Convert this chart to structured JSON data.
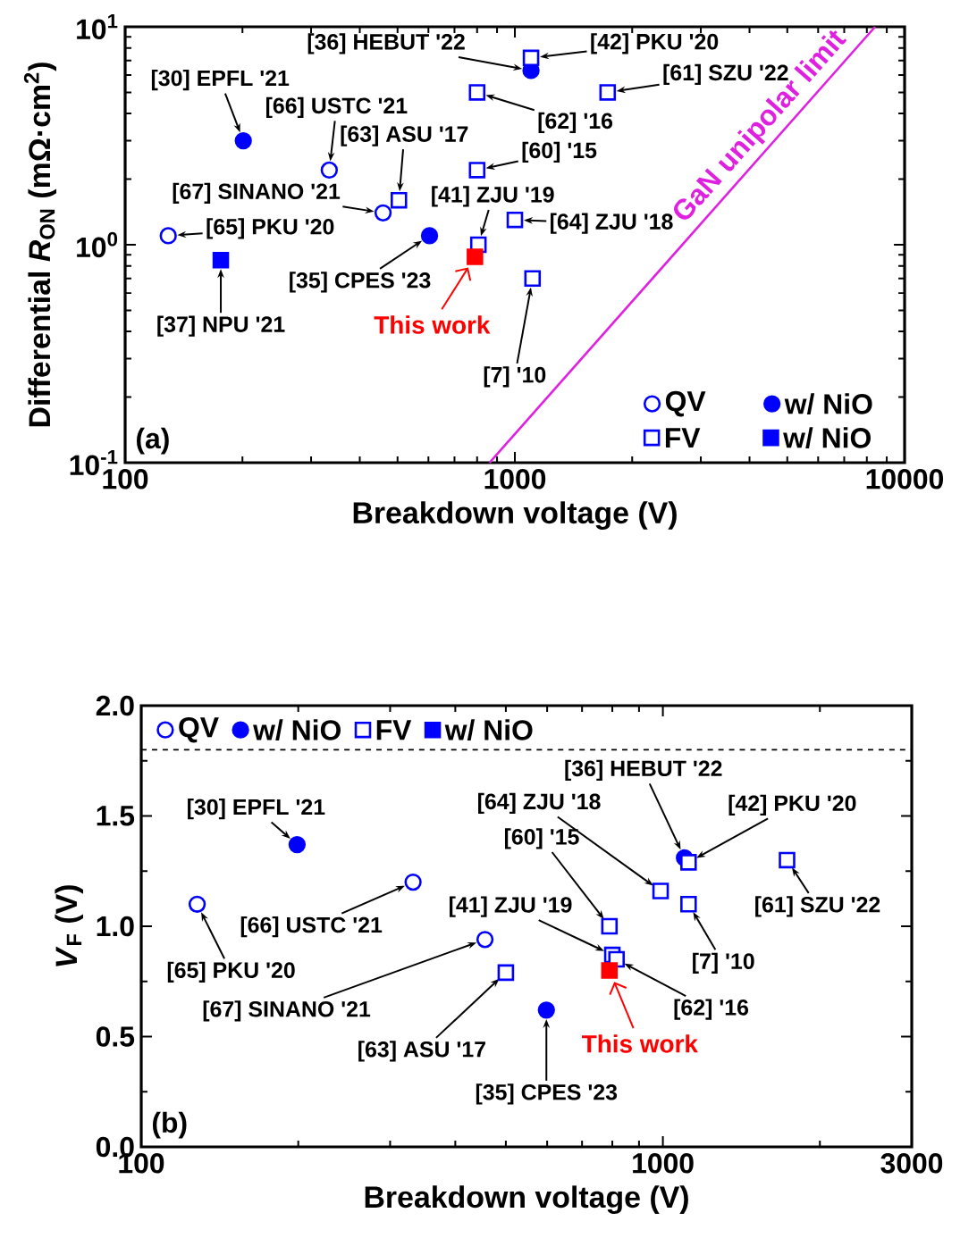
{
  "chart_data": [
    {
      "type": "scatter",
      "xlabel": "Breakdown voltage (V)",
      "ylabel": "Differential *R*$_{ON}$ (mΩ·cm$^{2}$)",
      "log": "xy",
      "xlim": [
        100,
        10000
      ],
      "ylim": [
        0.1,
        10
      ],
      "xticks": [
        100,
        1000,
        10000
      ],
      "yticks": [
        {
          "value": 0.1,
          "label": "10$^{-1}$"
        },
        {
          "value": 1,
          "label": "10$^{0}$"
        },
        {
          "value": 10,
          "label": "10$^{1}$"
        }
      ],
      "legend": "bottom right",
      "series": [
        {
          "name": "QV",
          "color": "#0000ff",
          "marker": "circle",
          "x": [
            334,
            459,
            129
          ],
          "values": [
            2.2,
            1.4,
            1.1
          ]
        },
        {
          "name": "w/ NiO",
          "color": "#0000ff",
          "marker": "circle",
          "x": [
            201,
            604,
            1100
          ],
          "values": [
            3.0,
            1.1,
            6.3
          ]
        },
        {
          "name": "FV",
          "color": "#0000ff",
          "marker": "square",
          "x": [
            504,
            806,
            800,
            800,
            1000,
            1110,
            1100,
            1730
          ],
          "values": [
            1.6,
            1.0,
            5.0,
            2.2,
            1.3,
            0.7,
            7.2,
            5.0
          ]
        },
        {
          "name": "w/ NiO",
          "color": "#0000ff",
          "marker": "square",
          "x": [
            176
          ],
          "values": [
            0.85
          ]
        },
        {
          "name": "This work",
          "color": "#ff0000",
          "marker": "square",
          "x": [
            790
          ],
          "values": [
            0.88
          ]
        },
        {
          "name": "GaN unipolar limit",
          "type": "line",
          "color": "#e020e0",
          "x": [
            861,
            8400
          ],
          "values": [
            0.1,
            10
          ]
        }
      ],
      "annotations": [
        "(a)",
        {
          "text": "[30] EPFL '21",
          "x": 201,
          "y": 3.0
        },
        {
          "text": "[66] USTC '21",
          "x": 334,
          "y": 2.2
        },
        {
          "text": "[63] ASU '17",
          "x": 504,
          "y": 1.6
        },
        {
          "text": "[67] SINANO '21",
          "x": 459,
          "y": 1.4
        },
        {
          "text": "[65] PKU '20",
          "x": 129,
          "y": 1.1
        },
        {
          "text": "[37] NPU '21",
          "x": 176,
          "y": 0.85
        },
        {
          "text": "[35] CPES '23",
          "x": 604,
          "y": 1.1
        },
        {
          "text": "[41] ZJU '19",
          "x": 806,
          "y": 1.0
        },
        {
          "text": "[62] '16",
          "x": 800,
          "y": 5.0
        },
        {
          "text": "[60] '15",
          "x": 800,
          "y": 2.2
        },
        {
          "text": "[64] ZJU '18",
          "x": 1000,
          "y": 1.3
        },
        {
          "text": "[7] '10",
          "x": 1110,
          "y": 0.7
        },
        {
          "text": "[36] HEBUT '22",
          "x": 1100,
          "y": 6.3
        },
        {
          "text": "[42] PKU '20",
          "x": 1100,
          "y": 7.2
        },
        {
          "text": "[61] SZU '22",
          "x": 1730,
          "y": 5.0
        }
      ]
    },
    {
      "type": "scatter",
      "xlabel": "Breakdown voltage (V)",
      "ylabel": "*V*$_{F}$ (V)",
      "log": "x",
      "xlim": [
        100,
        3000
      ],
      "ylim": [
        0,
        2
      ],
      "xticks": [
        100,
        1000,
        3000
      ],
      "yticks": [
        {
          "value": 0,
          "label": "0.0"
        },
        0.5,
        {
          "value": 1,
          "label": "1.0"
        },
        1.5,
        {
          "value": 2,
          "label": "2.0"
        }
      ],
      "legend": "top left",
      "ref_lines": [
        {
          "axis": "y",
          "value": 1.8,
          "color": "#000000",
          "line_style": "dashed"
        }
      ],
      "series": [
        {
          "name": "QV",
          "color": "#0000ff",
          "marker": "circle",
          "x": [
            128,
            332,
            456
          ],
          "values": [
            1.1,
            1.2,
            0.94
          ]
        },
        {
          "name": "w/ NiO",
          "color": "#0000ff",
          "marker": "circle",
          "x": [
            199,
            598,
            1100
          ],
          "values": [
            1.37,
            0.62,
            1.31
          ]
        },
        {
          "name": "FV",
          "color": "#0000ff",
          "marker": "square",
          "x": [
            500,
            800,
            815,
            790,
            990,
            1120,
            1120,
            1730
          ],
          "values": [
            0.79,
            0.87,
            0.85,
            1.0,
            1.16,
            1.1,
            1.29,
            1.3
          ]
        },
        {
          "name": "w/ NiO",
          "color": "#0000ff",
          "marker": "square"
        },
        {
          "name": "This work",
          "color": "#ff0000",
          "marker": "square",
          "x": [
            790
          ],
          "values": [
            0.8
          ]
        }
      ],
      "annotations": [
        "(b)",
        {
          "text": "[30] EPFL '21",
          "x": 199,
          "y": 1.37
        },
        {
          "text": "[65] PKU '20",
          "x": 128,
          "y": 1.1
        },
        {
          "text": "[66] USTC '21",
          "x": 332,
          "y": 1.2
        },
        {
          "text": "[67] SINANO '21",
          "x": 456,
          "y": 0.94
        },
        {
          "text": "[63] ASU '17",
          "x": 500,
          "y": 0.79
        },
        {
          "text": "[35] CPES '23",
          "x": 598,
          "y": 0.62
        },
        {
          "text": "[41] ZJU '19",
          "x": 800,
          "y": 0.87
        },
        {
          "text": "[62] '16",
          "x": 815,
          "y": 0.85
        },
        {
          "text": "[60] '15",
          "x": 790,
          "y": 1.0
        },
        {
          "text": "[64] ZJU '18",
          "x": 990,
          "y": 1.16
        },
        {
          "text": "[7] '10",
          "x": 1120,
          "y": 1.1
        },
        {
          "text": "[36] HEBUT '22",
          "x": 1100,
          "y": 1.31
        },
        {
          "text": "[42] PKU '20",
          "x": 1120,
          "y": 1.29
        },
        {
          "text": "[61] SZU '22",
          "x": 1730,
          "y": 1.3
        }
      ]
    }
  ]
}
